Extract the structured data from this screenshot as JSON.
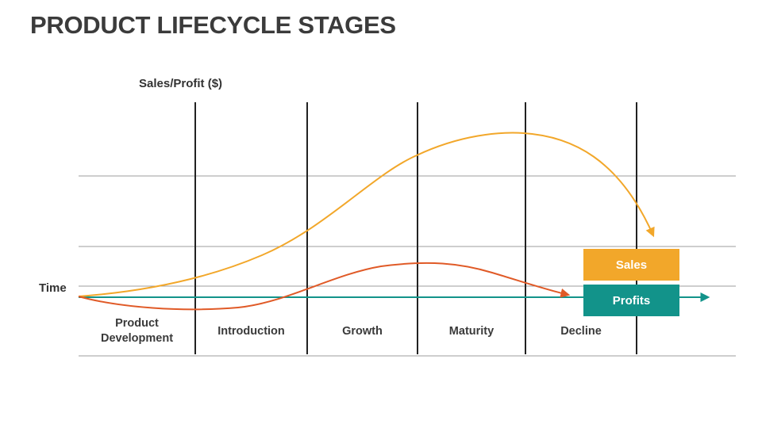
{
  "slide": {
    "title": "PRODUCT LIFECYCLE STAGES"
  },
  "chart_data": {
    "type": "line",
    "ylabel": "Sales/Profit ($)",
    "xlabel": "Time",
    "stages": [
      "Product Development",
      "Introduction",
      "Growth",
      "Maturity",
      "Decline"
    ],
    "grid": true,
    "legend": [
      {
        "name": "Sales",
        "color": "#f2a72a"
      },
      {
        "name": "Profits",
        "color": "#12938a"
      }
    ],
    "series": [
      {
        "name": "Sales",
        "color": "#f2a72a",
        "x": [
          0,
          0.5,
          1,
          1.5,
          2,
          2.5,
          3,
          3.5,
          4,
          4.15
        ],
        "values": [
          0,
          0.4,
          1.6,
          4.5,
          8.2,
          12.4,
          14.3,
          14.4,
          10.0,
          6.3
        ]
      },
      {
        "name": "Profit",
        "color": "#e05a27",
        "x": [
          0,
          0.5,
          1,
          1.5,
          2,
          2.5,
          3,
          3.5,
          4
        ],
        "values": [
          0,
          -1.3,
          -1.6,
          -0.6,
          0.9,
          3.1,
          3.4,
          1.8,
          0
        ]
      },
      {
        "name": "Time axis",
        "color": "#12938a",
        "x": [
          0,
          5.6
        ],
        "values": [
          0,
          0
        ]
      }
    ]
  }
}
